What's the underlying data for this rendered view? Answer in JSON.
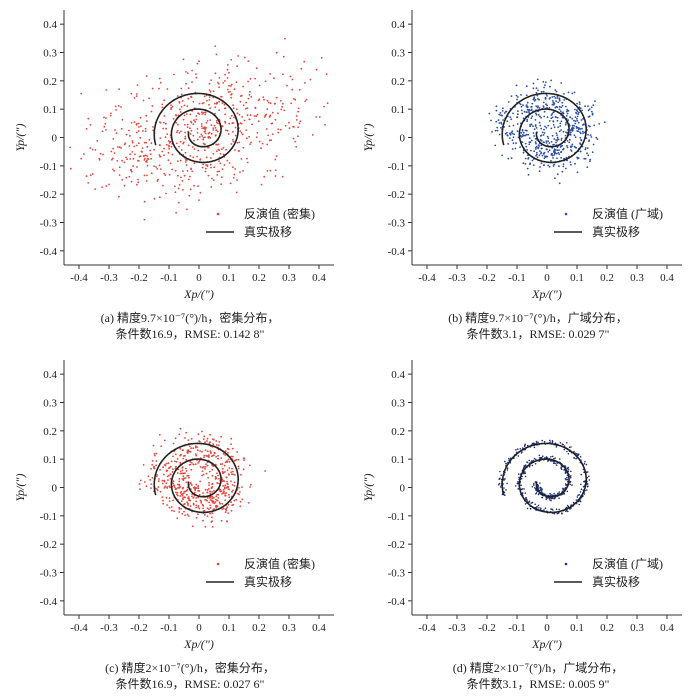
{
  "chart_data": [
    {
      "type": "scatter",
      "xlabel": "Xp/(\")",
      "ylabel": "Yp/(\")",
      "xlim": [
        -0.45,
        0.45
      ],
      "ylim": [
        -0.45,
        0.45
      ],
      "xticks": [
        "-0.4",
        "-0.3",
        "-0.2",
        "-0.1",
        "0",
        "0.1",
        "0.2",
        "0.3",
        "0.4"
      ],
      "yticks": [
        "0.4",
        "0.3",
        "0.2",
        "0.1",
        "0",
        "-0.1",
        "-0.2",
        "-0.3",
        "-0.4"
      ],
      "series": [
        {
          "name": "反演值 (密集)",
          "kind": "points",
          "color": "#e8443a",
          "noise": 0.142
        },
        {
          "name": "真实极移",
          "kind": "line",
          "color": "#222222"
        }
      ],
      "caption_line1": "(a) 精度9.7×10⁻⁷(°)/h，密集分布，",
      "caption_line2": "条件数16.9，RMSE: 0.142 8\""
    },
    {
      "type": "scatter",
      "xlabel": "Xp/(\")",
      "ylabel": "Yp/(\")",
      "xlim": [
        -0.45,
        0.45
      ],
      "ylim": [
        -0.45,
        0.45
      ],
      "xticks": [
        "-0.4",
        "-0.3",
        "-0.2",
        "-0.1",
        "0",
        "0.1",
        "0.2",
        "0.3",
        "0.4"
      ],
      "yticks": [
        "0.4",
        "0.3",
        "0.2",
        "0.1",
        "0",
        "-0.1",
        "-0.2",
        "-0.3",
        "-0.4"
      ],
      "series": [
        {
          "name": "反演值 (广域)",
          "kind": "points",
          "color": "#2b4fa8",
          "noise": 0.03
        },
        {
          "name": "真实极移",
          "kind": "line",
          "color": "#222222"
        }
      ],
      "caption_line1": "(b) 精度9.7×10⁻⁷(°)/h，广域分布，",
      "caption_line2": "条件数3.1，RMSE: 0.029 7\""
    },
    {
      "type": "scatter",
      "xlabel": "Xp/(\")",
      "ylabel": "Yp/(\")",
      "xlim": [
        -0.45,
        0.45
      ],
      "ylim": [
        -0.45,
        0.45
      ],
      "xticks": [
        "-0.4",
        "-0.3",
        "-0.2",
        "-0.1",
        "0",
        "0.1",
        "0.2",
        "0.3",
        "0.4"
      ],
      "yticks": [
        "0.4",
        "0.3",
        "0.2",
        "0.1",
        "0",
        "-0.1",
        "-0.2",
        "-0.3",
        "-0.4"
      ],
      "series": [
        {
          "name": "反演值 (密集)",
          "kind": "points",
          "color": "#e8443a",
          "noise": 0.028
        },
        {
          "name": "真实极移",
          "kind": "line",
          "color": "#222222"
        }
      ],
      "caption_line1": "(c) 精度2×10⁻⁷(°)/h，密集分布，",
      "caption_line2": "条件数16.9，RMSE: 0.027 6\""
    },
    {
      "type": "scatter",
      "xlabel": "Xp/(\")",
      "ylabel": "Yp/(\")",
      "xlim": [
        -0.45,
        0.45
      ],
      "ylim": [
        -0.45,
        0.45
      ],
      "xticks": [
        "-0.4",
        "-0.3",
        "-0.2",
        "-0.1",
        "0",
        "0.1",
        "0.2",
        "0.3",
        "0.4"
      ],
      "yticks": [
        "0.4",
        "0.3",
        "0.2",
        "0.1",
        "0",
        "-0.1",
        "-0.2",
        "-0.3",
        "-0.4"
      ],
      "series": [
        {
          "name": "反演值 (广域)",
          "kind": "points",
          "color": "#1a2f7a",
          "noise": 0.006
        },
        {
          "name": "真实极移",
          "kind": "line",
          "color": "#222222"
        }
      ],
      "caption_line1": "(d) 精度2×10⁻⁷(°)/h，广域分布，",
      "caption_line2": "条件数3.1，RMSE: 0.005 9\""
    }
  ]
}
